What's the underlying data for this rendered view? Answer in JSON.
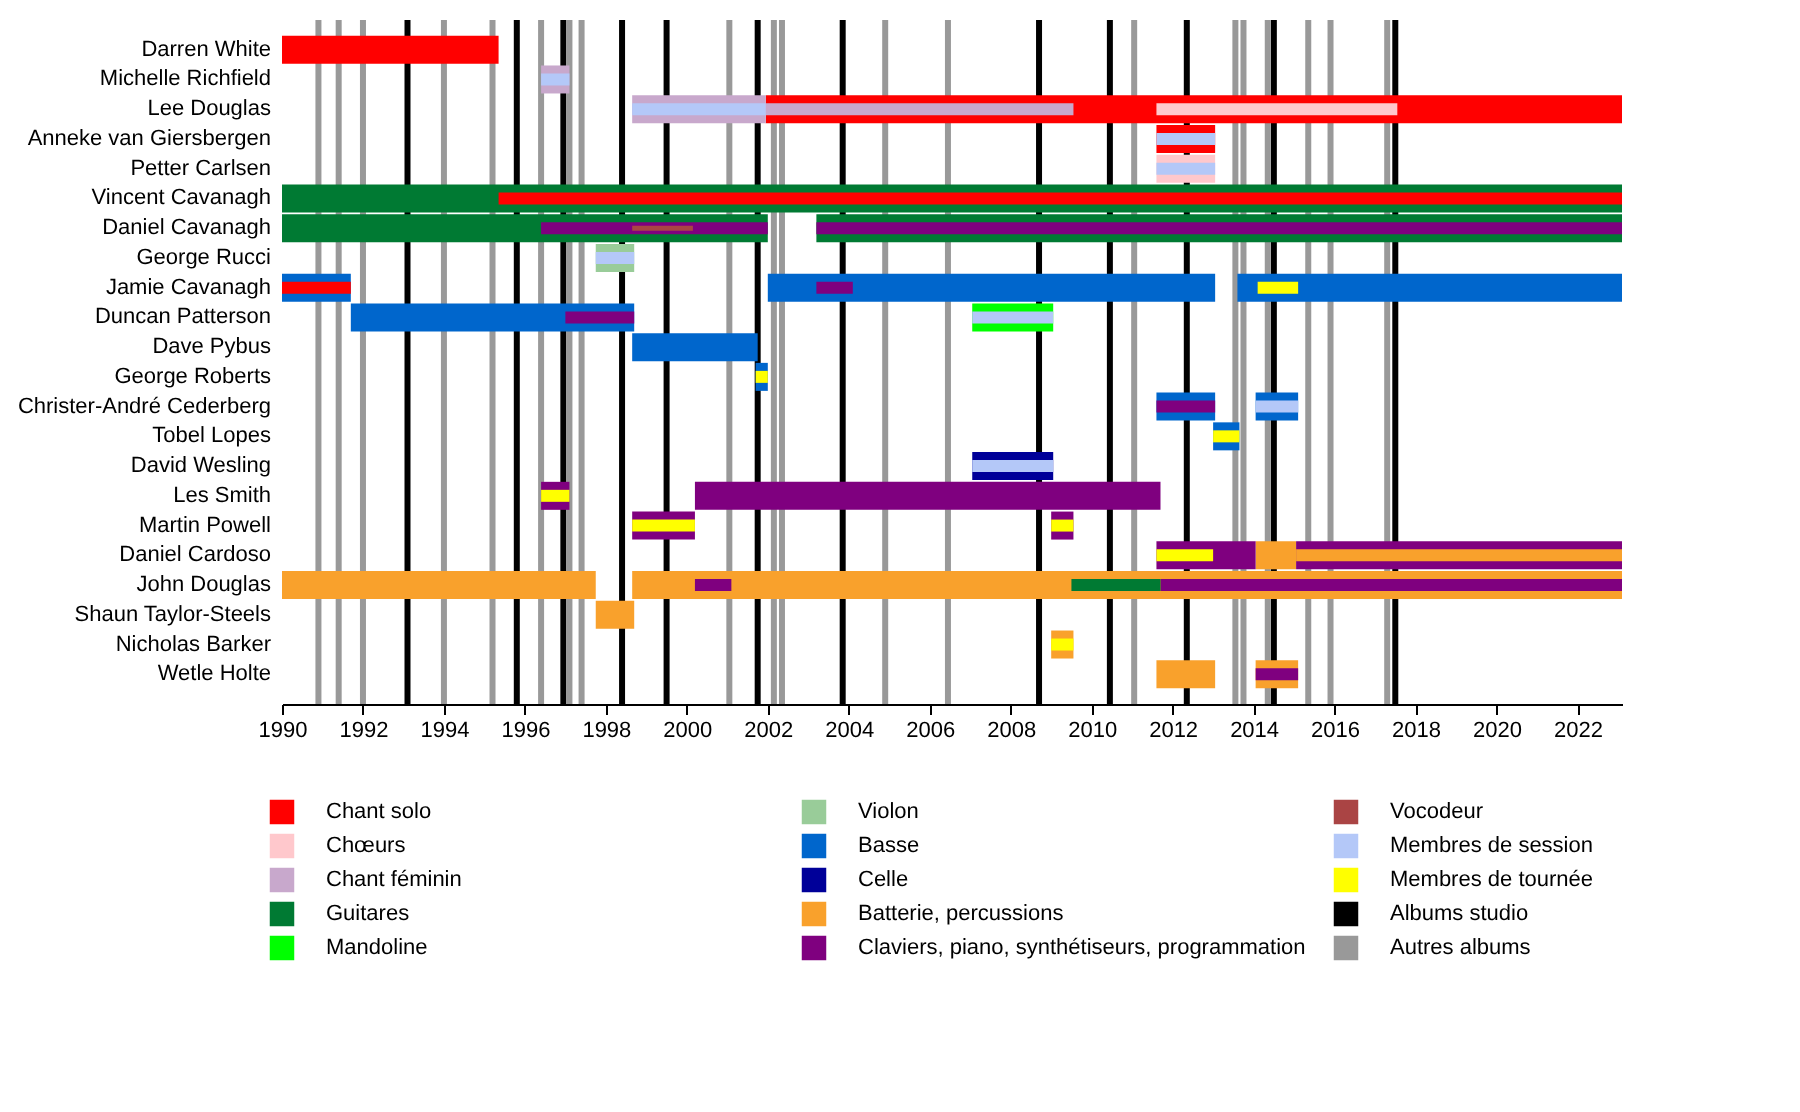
{
  "chart_data": {
    "type": "bar",
    "orientation": "horizontal",
    "legend": "bottom",
    "categories": [
      "Darren White",
      "Michelle Richfield",
      "Lee Douglas",
      "Anneke van Giersbergen",
      "Petter Carlsen",
      "Vincent Cavanagh",
      "Daniel Cavanagh",
      "George Rucci",
      "Jamie Cavanagh",
      "Duncan Patterson",
      "Dave Pybus",
      "George Roberts",
      "Christer-André Cederberg",
      "Tobel Lopes",
      "David Wesling",
      "Les Smith",
      "Martin Powell",
      "Daniel Cardoso",
      "John Douglas",
      "Shaun Taylor-Steels",
      "Nicholas Barker",
      "Wetle Holte"
    ],
    "xlim": [
      1990,
      2023.1
    ],
    "xticks": [
      1990,
      1992,
      1994,
      1996,
      1998,
      2000,
      2002,
      2004,
      2006,
      2008,
      2010,
      2012,
      2014,
      2016,
      2018,
      2020,
      2022
    ],
    "series": [
      {
        "name": "Chant solo",
        "color": "#ff0000",
        "base": [
          1990,
          null,
          2001.95,
          2011.6,
          null,
          null,
          null,
          null,
          null,
          null,
          null,
          null,
          null,
          null,
          null,
          null,
          null,
          null,
          null,
          null,
          null,
          null
        ],
        "values": [
          5.35,
          null,
          21.15,
          1.45,
          null,
          null,
          null,
          null,
          null,
          null,
          null,
          null,
          null,
          null,
          null,
          null,
          null,
          null,
          null,
          null,
          null,
          null
        ]
      },
      {
        "name": "Chœurs",
        "color": "#ffc8cc",
        "base": [
          null,
          null,
          null,
          null,
          2011.6,
          null,
          null,
          null,
          null,
          null,
          null,
          null,
          null,
          null,
          null,
          null,
          null,
          null,
          null,
          null,
          null,
          null
        ],
        "values": [
          null,
          null,
          null,
          null,
          1.45,
          null,
          null,
          null,
          null,
          null,
          null,
          null,
          null,
          null,
          null,
          null,
          null,
          null,
          null,
          null,
          null,
          null
        ]
      },
      {
        "name": "Chant féminin",
        "color": "#c8a8cc",
        "base": [
          null,
          1996.4,
          1998.65,
          null,
          null,
          null,
          null,
          null,
          null,
          null,
          null,
          null,
          null,
          null,
          null,
          null,
          null,
          null,
          null,
          null,
          null,
          null
        ],
        "values": [
          null,
          0.7,
          3.3,
          null,
          null,
          null,
          null,
          null,
          null,
          null,
          null,
          null,
          null,
          null,
          null,
          null,
          null,
          null,
          null,
          null,
          null,
          null
        ]
      },
      {
        "name": "Guitares",
        "color": "#007a33",
        "base": [
          null,
          null,
          null,
          null,
          null,
          1990,
          1990,
          null,
          null,
          null,
          null,
          null,
          null,
          null,
          null,
          null,
          null,
          null,
          null,
          null,
          null,
          null
        ],
        "values": [
          null,
          null,
          null,
          null,
          null,
          33.1,
          12,
          null,
          null,
          null,
          null,
          null,
          null,
          null,
          null,
          null,
          null,
          null,
          null,
          null,
          null,
          null
        ]
      },
      {
        "color": "#007a33",
        "base": [
          null,
          null,
          null,
          null,
          null,
          null,
          2003.2,
          null,
          null,
          null,
          null,
          null,
          null,
          null,
          null,
          null,
          null,
          null,
          null,
          null,
          null,
          null
        ],
        "values": [
          null,
          null,
          null,
          null,
          null,
          null,
          19.9,
          null,
          null,
          null,
          null,
          null,
          null,
          null,
          null,
          null,
          null,
          null,
          null,
          null,
          null,
          null
        ]
      },
      {
        "name": "Mandoline",
        "color": "#00ff00",
        "base": [
          null,
          null,
          null,
          null,
          null,
          null,
          null,
          null,
          null,
          2007.05,
          null,
          null,
          null,
          null,
          null,
          null,
          null,
          null,
          null,
          null,
          null,
          null
        ],
        "values": [
          null,
          null,
          null,
          null,
          null,
          null,
          null,
          null,
          null,
          2,
          null,
          null,
          null,
          null,
          null,
          null,
          null,
          null,
          null,
          null,
          null,
          null
        ]
      },
      {
        "name": "Violon",
        "color": "#99cc99",
        "base": [
          null,
          null,
          null,
          null,
          null,
          null,
          null,
          1997.75,
          null,
          null,
          null,
          null,
          null,
          null,
          null,
          null,
          null,
          null,
          null,
          null,
          null,
          null
        ],
        "values": [
          null,
          null,
          null,
          null,
          null,
          null,
          null,
          0.95,
          null,
          null,
          null,
          null,
          null,
          null,
          null,
          null,
          null,
          null,
          null,
          null,
          null,
          null
        ]
      },
      {
        "name": "Basse",
        "color": "#0066cc",
        "base": [
          null,
          null,
          null,
          null,
          null,
          null,
          null,
          null,
          1990,
          1991.7,
          1998.65,
          2001.7,
          2011.6,
          2013,
          null,
          null,
          null,
          null,
          null,
          null,
          null,
          null
        ],
        "values": [
          null,
          null,
          null,
          null,
          null,
          null,
          null,
          null,
          1.7,
          7,
          3.1,
          0.3,
          1.45,
          0.65,
          null,
          null,
          null,
          null,
          null,
          null,
          null,
          null
        ]
      },
      {
        "color": "#0066cc",
        "base": [
          null,
          null,
          null,
          null,
          null,
          null,
          null,
          null,
          2002,
          null,
          null,
          null,
          2014.05,
          null,
          null,
          null,
          null,
          null,
          null,
          null,
          null,
          null
        ],
        "values": [
          null,
          null,
          null,
          null,
          null,
          null,
          null,
          null,
          11.05,
          null,
          null,
          null,
          1.05,
          null,
          null,
          null,
          null,
          null,
          null,
          null,
          null,
          null
        ]
      },
      {
        "color": "#0066cc",
        "base": [
          null,
          null,
          null,
          null,
          null,
          null,
          null,
          null,
          2013.6,
          null,
          null,
          null,
          null,
          null,
          null,
          null,
          null,
          null,
          null,
          null,
          null,
          null
        ],
        "values": [
          null,
          null,
          null,
          null,
          null,
          null,
          null,
          null,
          9.5,
          null,
          null,
          null,
          null,
          null,
          null,
          null,
          null,
          null,
          null,
          null,
          null,
          null
        ]
      },
      {
        "name": "Celle",
        "color": "#000099",
        "base": [
          null,
          null,
          null,
          null,
          null,
          null,
          null,
          null,
          null,
          null,
          null,
          null,
          null,
          null,
          2007.05,
          null,
          null,
          null,
          null,
          null,
          null,
          null
        ],
        "values": [
          null,
          null,
          null,
          null,
          null,
          null,
          null,
          null,
          null,
          null,
          null,
          null,
          null,
          null,
          2,
          null,
          null,
          null,
          null,
          null,
          null,
          null
        ]
      },
      {
        "name": "Batterie, percussions",
        "color": "#f9a12c",
        "base": [
          null,
          null,
          null,
          null,
          null,
          null,
          null,
          null,
          null,
          null,
          null,
          null,
          null,
          null,
          null,
          null,
          null,
          2014.05,
          1990,
          1997.75,
          2009,
          2011.6
        ],
        "values": [
          null,
          null,
          null,
          null,
          null,
          null,
          null,
          null,
          null,
          null,
          null,
          null,
          null,
          null,
          null,
          null,
          null,
          1,
          7.75,
          0.95,
          0.55,
          1.45
        ]
      },
      {
        "color": "#f9a12c",
        "base": [
          null,
          null,
          null,
          null,
          null,
          null,
          null,
          null,
          null,
          null,
          null,
          null,
          null,
          null,
          null,
          null,
          null,
          null,
          1998.65,
          null,
          null,
          2014.05
        ],
        "values": [
          null,
          null,
          null,
          null,
          null,
          null,
          null,
          null,
          null,
          null,
          null,
          null,
          null,
          null,
          null,
          null,
          null,
          null,
          24.45,
          null,
          null,
          1.05
        ]
      },
      {
        "name": "Claviers, piano, synthétiseurs, programmation",
        "color": "#7f007f",
        "base": [
          null,
          null,
          null,
          null,
          null,
          null,
          null,
          null,
          null,
          null,
          null,
          null,
          null,
          null,
          null,
          2000.2,
          1998.65,
          2011.6,
          null,
          null,
          null,
          null
        ],
        "values": [
          null,
          null,
          null,
          null,
          null,
          null,
          null,
          null,
          null,
          null,
          null,
          null,
          null,
          null,
          null,
          11.5,
          1.55,
          2.45,
          null,
          null,
          null,
          null
        ]
      },
      {
        "color": "#7f007f",
        "base": [
          null,
          null,
          null,
          null,
          null,
          null,
          null,
          null,
          null,
          null,
          null,
          null,
          null,
          null,
          null,
          1996.4,
          2009,
          2015.05,
          null,
          null,
          null,
          null
        ],
        "values": [
          null,
          null,
          null,
          null,
          null,
          null,
          null,
          null,
          null,
          null,
          null,
          null,
          null,
          null,
          null,
          0.7,
          0.55,
          8.05,
          null,
          null,
          null,
          null
        ]
      },
      {
        "color": "#ff0000",
        "base": [
          null,
          null,
          null,
          null,
          null,
          1995.35,
          null,
          null,
          1990,
          null,
          null,
          null,
          null,
          null,
          null,
          null,
          null,
          null,
          null,
          null,
          null,
          null
        ],
        "values": [
          null,
          null,
          null,
          null,
          null,
          27.75,
          null,
          null,
          1.7,
          null,
          null,
          null,
          null,
          null,
          null,
          null,
          null,
          null,
          null,
          null,
          null,
          null
        ]
      },
      {
        "color": "#c8a8cc",
        "base": [
          null,
          null,
          2001.95,
          null,
          null,
          null,
          null,
          null,
          null,
          null,
          null,
          null,
          null,
          null,
          null,
          null,
          null,
          null,
          null,
          null,
          null,
          null
        ],
        "values": [
          null,
          null,
          7.6,
          null,
          null,
          null,
          null,
          null,
          null,
          null,
          null,
          null,
          null,
          null,
          null,
          null,
          null,
          null,
          null,
          null,
          null,
          null
        ]
      },
      {
        "color": "#ffc8cc",
        "base": [
          null,
          null,
          2011.6,
          null,
          null,
          null,
          null,
          null,
          null,
          null,
          null,
          null,
          null,
          null,
          null,
          null,
          null,
          null,
          null,
          null,
          null,
          null
        ],
        "values": [
          null,
          null,
          5.95,
          null,
          null,
          null,
          null,
          null,
          null,
          null,
          null,
          null,
          null,
          null,
          null,
          null,
          null,
          null,
          null,
          null,
          null,
          null
        ]
      },
      {
        "color": "#7f007f",
        "base": [
          null,
          null,
          null,
          null,
          null,
          null,
          1996.4,
          null,
          2003.2,
          1997,
          null,
          null,
          2011.6,
          null,
          null,
          null,
          null,
          null,
          2000.2,
          null,
          null,
          2014.05
        ],
        "values": [
          null,
          null,
          null,
          null,
          null,
          null,
          5.6,
          null,
          0.9,
          1.7,
          null,
          null,
          1.45,
          null,
          null,
          null,
          null,
          null,
          0.9,
          null,
          null,
          1.05
        ]
      },
      {
        "color": "#7f007f",
        "base": [
          null,
          null,
          null,
          null,
          null,
          null,
          2003.2,
          null,
          null,
          null,
          null,
          null,
          null,
          null,
          null,
          null,
          null,
          null,
          2011.7,
          null,
          null,
          null
        ],
        "values": [
          null,
          null,
          null,
          null,
          null,
          null,
          19.9,
          null,
          null,
          null,
          null,
          null,
          null,
          null,
          null,
          null,
          null,
          null,
          11.4,
          null,
          null,
          null
        ]
      },
      {
        "color": "#007a33",
        "base": [
          null,
          null,
          null,
          null,
          null,
          null,
          null,
          null,
          null,
          null,
          null,
          null,
          null,
          null,
          null,
          null,
          null,
          null,
          2009.5,
          null,
          null,
          null
        ],
        "values": [
          null,
          null,
          null,
          null,
          null,
          null,
          null,
          null,
          null,
          null,
          null,
          null,
          null,
          null,
          null,
          null,
          null,
          null,
          2.2,
          null,
          null,
          null
        ]
      },
      {
        "color": "#f9a12c",
        "base": [
          null,
          null,
          null,
          null,
          null,
          null,
          null,
          null,
          null,
          null,
          null,
          null,
          null,
          null,
          null,
          null,
          null,
          2015.05,
          null,
          null,
          null,
          null
        ],
        "values": [
          null,
          null,
          null,
          null,
          null,
          null,
          null,
          null,
          null,
          null,
          null,
          null,
          null,
          null,
          null,
          null,
          null,
          8.05,
          null,
          null,
          null,
          null
        ]
      },
      {
        "name": "Vocodeur",
        "color": "#aa4444",
        "base": [
          null,
          null,
          null,
          null,
          null,
          null,
          1998.65,
          null,
          null,
          null,
          null,
          null,
          null,
          null,
          null,
          null,
          null,
          null,
          null,
          null,
          null,
          null
        ],
        "values": [
          null,
          null,
          null,
          null,
          null,
          null,
          1.5,
          null,
          null,
          null,
          null,
          null,
          null,
          null,
          null,
          null,
          null,
          null,
          null,
          null,
          null,
          null
        ]
      },
      {
        "name": "Membres de session",
        "color": "#b4c8f8",
        "base": [
          null,
          1996.4,
          1998.65,
          2011.6,
          2011.6,
          null,
          null,
          1997.75,
          null,
          2007.05,
          null,
          null,
          2014.05,
          null,
          2007.05,
          null,
          null,
          null,
          null,
          null,
          null,
          null
        ],
        "values": [
          null,
          0.7,
          3.3,
          1.45,
          1.45,
          null,
          null,
          0.95,
          null,
          2,
          null,
          null,
          1.05,
          null,
          2,
          null,
          null,
          null,
          null,
          null,
          null,
          null
        ]
      },
      {
        "name": "Membres de tournée",
        "color": "#ffff00",
        "base": [
          null,
          null,
          null,
          null,
          null,
          null,
          null,
          null,
          2014.1,
          null,
          null,
          2001.7,
          null,
          2013,
          null,
          1996.4,
          1998.65,
          2011.6,
          null,
          null,
          2009,
          null
        ],
        "values": [
          null,
          null,
          null,
          null,
          null,
          null,
          null,
          null,
          1,
          null,
          null,
          0.3,
          null,
          0.65,
          null,
          0.7,
          1.55,
          1.4,
          null,
          null,
          0.55,
          null
        ]
      },
      {
        "color": "#ffff00",
        "base": [
          null,
          null,
          null,
          null,
          null,
          null,
          null,
          null,
          null,
          null,
          null,
          null,
          null,
          null,
          null,
          null,
          2009,
          null,
          null,
          null,
          null,
          null
        ],
        "values": [
          null,
          null,
          null,
          null,
          null,
          null,
          null,
          null,
          null,
          null,
          null,
          null,
          null,
          null,
          null,
          null,
          0.55,
          null,
          null,
          null,
          null,
          null
        ]
      }
    ],
    "ref_lines": [
      {
        "axis": "x",
        "value": 1993.1,
        "label": "Albums studio",
        "color": "#000000"
      },
      {
        "axis": "x",
        "value": 1995.8,
        "color": "#000000"
      },
      {
        "axis": "x",
        "value": 1996.95,
        "color": "#000000"
      },
      {
        "axis": "x",
        "value": 1998.4,
        "color": "#000000"
      },
      {
        "axis": "x",
        "value": 1999.5,
        "color": "#000000"
      },
      {
        "axis": "x",
        "value": 2001.75,
        "color": "#000000"
      },
      {
        "axis": "x",
        "value": 2003.85,
        "color": "#000000"
      },
      {
        "axis": "x",
        "value": 2008.7,
        "color": "#000000"
      },
      {
        "axis": "x",
        "value": 2010.45,
        "color": "#000000"
      },
      {
        "axis": "x",
        "value": 2012.35,
        "color": "#000000"
      },
      {
        "axis": "x",
        "value": 2014.5,
        "color": "#000000"
      },
      {
        "axis": "x",
        "value": 2017.5,
        "color": "#000000"
      },
      {
        "axis": "x",
        "value": 1990.9,
        "label": "Autres albums",
        "color": "#999999"
      },
      {
        "axis": "x",
        "value": 1991.4,
        "color": "#999999"
      },
      {
        "axis": "x",
        "value": 1992,
        "color": "#999999"
      },
      {
        "axis": "x",
        "value": 1994,
        "color": "#999999"
      },
      {
        "axis": "x",
        "value": 1995.2,
        "color": "#999999"
      },
      {
        "axis": "x",
        "value": 1996.4,
        "color": "#999999"
      },
      {
        "axis": "x",
        "value": 1997.1,
        "color": "#999999"
      },
      {
        "axis": "x",
        "value": 1997.4,
        "color": "#999999"
      },
      {
        "axis": "x",
        "value": 2001.05,
        "color": "#999999"
      },
      {
        "axis": "x",
        "value": 2002.15,
        "color": "#999999"
      },
      {
        "axis": "x",
        "value": 2002.35,
        "color": "#999999"
      },
      {
        "axis": "x",
        "value": 2004.9,
        "color": "#999999"
      },
      {
        "axis": "x",
        "value": 2006.45,
        "color": "#999999"
      },
      {
        "axis": "x",
        "value": 2011.05,
        "color": "#999999"
      },
      {
        "axis": "x",
        "value": 2013.55,
        "color": "#999999"
      },
      {
        "axis": "x",
        "value": 2013.75,
        "color": "#999999"
      },
      {
        "axis": "x",
        "value": 2014.35,
        "color": "#999999"
      },
      {
        "axis": "x",
        "value": 2015.35,
        "color": "#999999"
      },
      {
        "axis": "x",
        "value": 2015.9,
        "color": "#999999"
      },
      {
        "axis": "x",
        "value": 2017.3,
        "color": "#999999"
      }
    ]
  }
}
